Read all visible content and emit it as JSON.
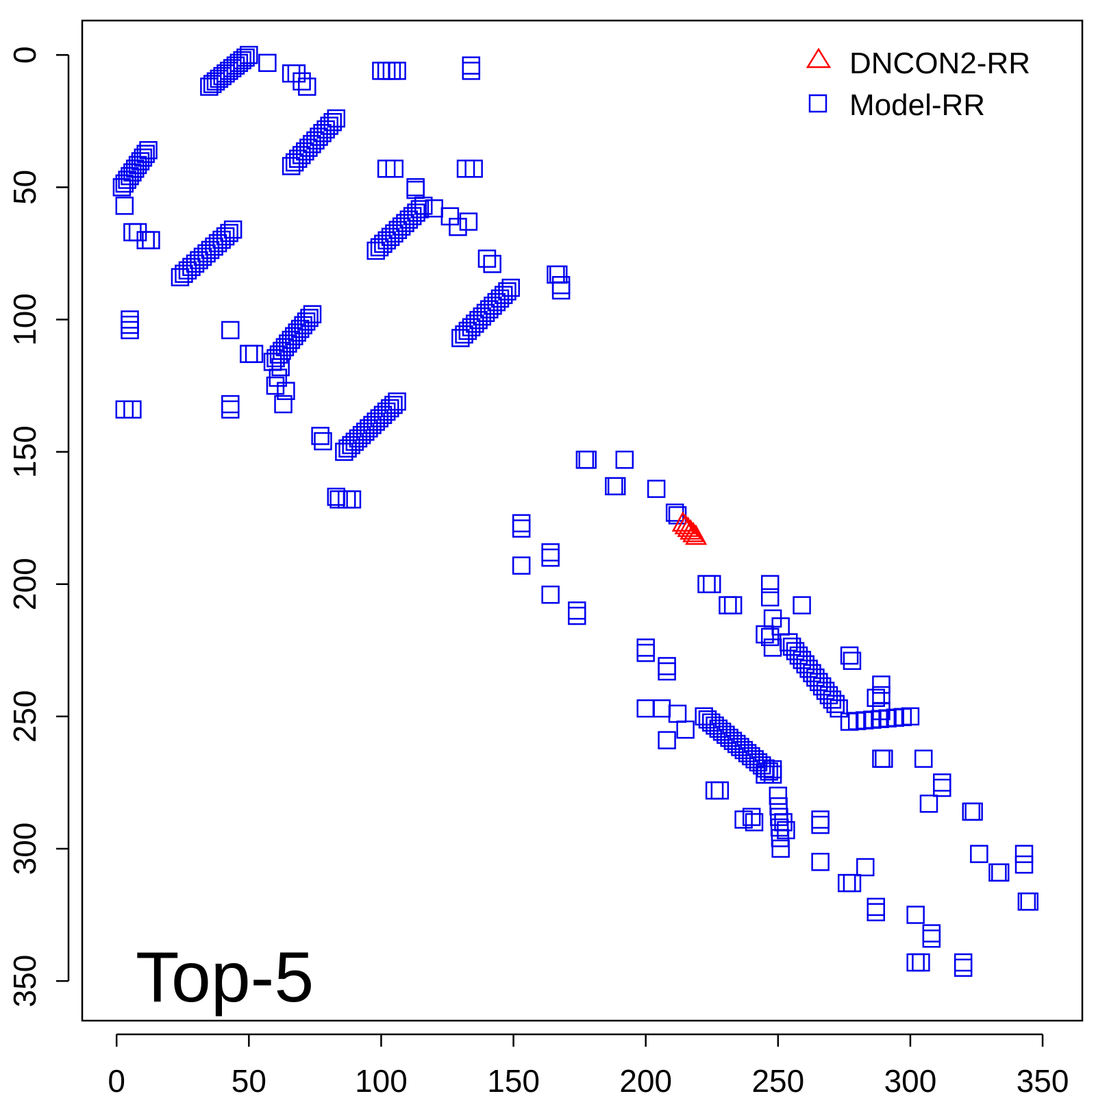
{
  "chart_data": {
    "type": "scatter",
    "title": "",
    "xlabel": "",
    "ylabel": "",
    "annotation": "Top-5",
    "xlim": [
      -13,
      365
    ],
    "ylim": [
      -13,
      365
    ],
    "y_reversed": true,
    "grid": false,
    "legend_position": "top-right",
    "xticks": [
      "0",
      "50",
      "100",
      "150",
      "200",
      "250",
      "300",
      "350"
    ],
    "yticks": [
      "0",
      "50",
      "100",
      "150",
      "200",
      "250",
      "300",
      "350"
    ],
    "colors": {
      "dncon2": "#ff0000",
      "model": "#0000ee",
      "axis": "#000000"
    },
    "series": [
      {
        "name": "DNCON2-RR",
        "marker": "triangle",
        "points": [
          [
            214,
            177
          ],
          [
            215,
            178
          ],
          [
            216,
            179
          ],
          [
            217,
            180
          ],
          [
            218,
            181
          ],
          [
            219,
            182
          ]
        ]
      },
      {
        "name": "Model-RR",
        "marker": "square",
        "segments": [
          {
            "from": [
              35,
              12
            ],
            "to": [
              50,
              0
            ],
            "n": 13
          },
          {
            "from": [
              2,
              50
            ],
            "to": [
              12,
              36
            ],
            "n": 11
          },
          {
            "from": [
              24,
              84
            ],
            "to": [
              44,
              66
            ],
            "n": 15
          },
          {
            "from": [
              66,
              42
            ],
            "to": [
              83,
              24
            ],
            "n": 14
          },
          {
            "from": [
              98,
              74
            ],
            "to": [
              116,
              57
            ],
            "n": 14
          },
          {
            "from": [
              59,
              116
            ],
            "to": [
              74,
              98
            ],
            "n": 14
          },
          {
            "from": [
              130,
              107
            ],
            "to": [
              149,
              88
            ],
            "n": 15
          },
          {
            "from": [
              86,
              150
            ],
            "to": [
              106,
              131
            ],
            "n": 16
          },
          {
            "from": [
              254,
              222
            ],
            "to": [
              273,
              247
            ],
            "n": 16
          },
          {
            "from": [
              222,
              250
            ],
            "to": [
              248,
              272
            ],
            "n": 20
          },
          {
            "from": [
              250,
              280
            ],
            "to": [
              251,
              300
            ],
            "n": 6
          },
          {
            "from": [
              277,
              252
            ],
            "to": [
              300,
              250
            ],
            "n": 9
          }
        ],
        "points": [
          [
            57,
            3
          ],
          [
            66,
            7
          ],
          [
            68,
            7
          ],
          [
            70,
            10
          ],
          [
            72,
            12
          ],
          [
            100,
            6
          ],
          [
            102,
            6
          ],
          [
            104,
            6
          ],
          [
            106,
            6
          ],
          [
            134,
            4
          ],
          [
            134,
            6
          ],
          [
            3,
            57
          ],
          [
            6,
            67
          ],
          [
            8,
            67
          ],
          [
            11,
            70
          ],
          [
            13,
            70
          ],
          [
            5,
            100
          ],
          [
            5,
            102
          ],
          [
            5,
            104
          ],
          [
            3,
            134
          ],
          [
            6,
            134
          ],
          [
            43,
            104
          ],
          [
            43,
            132
          ],
          [
            43,
            134
          ],
          [
            50,
            113
          ],
          [
            52,
            113
          ],
          [
            62,
            118
          ],
          [
            61,
            122
          ],
          [
            60,
            125
          ],
          [
            64,
            127
          ],
          [
            63,
            132
          ],
          [
            102,
            43
          ],
          [
            105,
            43
          ],
          [
            113,
            50
          ],
          [
            113,
            51
          ],
          [
            120,
            58
          ],
          [
            126,
            61
          ],
          [
            129,
            65
          ],
          [
            133,
            63
          ],
          [
            132,
            43
          ],
          [
            135,
            43
          ],
          [
            140,
            77
          ],
          [
            142,
            79
          ],
          [
            166,
            83
          ],
          [
            167,
            83
          ],
          [
            168,
            87
          ],
          [
            168,
            89
          ],
          [
            77,
            144
          ],
          [
            78,
            146
          ],
          [
            83,
            167
          ],
          [
            84,
            168
          ],
          [
            87,
            168
          ],
          [
            89,
            168
          ],
          [
            177,
            153
          ],
          [
            178,
            153
          ],
          [
            188,
            163
          ],
          [
            189,
            163
          ],
          [
            192,
            153
          ],
          [
            204,
            164
          ],
          [
            211,
            173
          ],
          [
            212,
            174
          ],
          [
            153,
            177
          ],
          [
            153,
            179
          ],
          [
            153,
            193
          ],
          [
            164,
            188
          ],
          [
            164,
            190
          ],
          [
            164,
            204
          ],
          [
            174,
            210
          ],
          [
            174,
            212
          ],
          [
            223,
            200
          ],
          [
            225,
            200
          ],
          [
            231,
            208
          ],
          [
            233,
            208
          ],
          [
            247,
            200
          ],
          [
            247,
            205
          ],
          [
            259,
            208
          ],
          [
            245,
            219
          ],
          [
            247,
            220
          ],
          [
            248,
            213
          ],
          [
            248,
            224
          ],
          [
            251,
            216
          ],
          [
            200,
            224
          ],
          [
            200,
            226
          ],
          [
            208,
            231
          ],
          [
            208,
            233
          ],
          [
            200,
            247
          ],
          [
            206,
            247
          ],
          [
            208,
            259
          ],
          [
            212,
            249
          ],
          [
            215,
            255
          ],
          [
            226,
            278
          ],
          [
            228,
            278
          ],
          [
            237,
            289
          ],
          [
            240,
            288
          ],
          [
            241,
            290
          ],
          [
            245,
            272
          ],
          [
            248,
            270
          ],
          [
            252,
            290
          ],
          [
            253,
            293
          ],
          [
            266,
            289
          ],
          [
            266,
            291
          ],
          [
            266,
            305
          ],
          [
            277,
            227
          ],
          [
            278,
            229
          ],
          [
            289,
            238
          ],
          [
            289,
            242
          ],
          [
            287,
            243
          ],
          [
            289,
            248
          ],
          [
            289,
            266
          ],
          [
            290,
            266
          ],
          [
            305,
            266
          ],
          [
            276,
            313
          ],
          [
            278,
            313
          ],
          [
            283,
            307
          ],
          [
            307,
            283
          ],
          [
            312,
            275
          ],
          [
            312,
            277
          ],
          [
            323,
            286
          ],
          [
            324,
            286
          ],
          [
            287,
            322
          ],
          [
            287,
            324
          ],
          [
            302,
            325
          ],
          [
            308,
            332
          ],
          [
            308,
            334
          ],
          [
            302,
            343
          ],
          [
            304,
            343
          ],
          [
            320,
            343
          ],
          [
            320,
            345
          ],
          [
            326,
            302
          ],
          [
            333,
            309
          ],
          [
            334,
            309
          ],
          [
            343,
            302
          ],
          [
            343,
            306
          ],
          [
            344,
            320
          ],
          [
            345,
            320
          ]
        ]
      }
    ]
  }
}
